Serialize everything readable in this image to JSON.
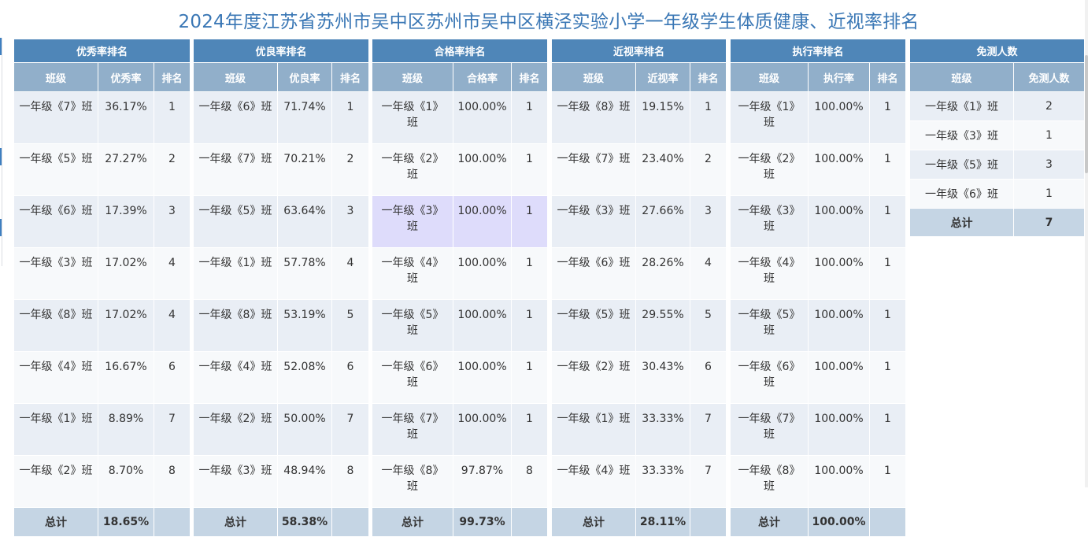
{
  "title": "2024年度江苏省苏州市吴中区苏州市吴中区横泾实验小学一年级学生体质健康、近视率排名",
  "tables": [
    {
      "title": "优秀率排名",
      "headers": [
        "班级",
        "优秀率",
        "排名"
      ],
      "rows": [
        {
          "cls": "一年级《7》班",
          "rate": "36.17%",
          "rank": "1"
        },
        {
          "cls": "一年级《5》班",
          "rate": "27.27%",
          "rank": "2"
        },
        {
          "cls": "一年级《6》班",
          "rate": "17.39%",
          "rank": "3"
        },
        {
          "cls": "一年级《3》班",
          "rate": "17.02%",
          "rank": "4"
        },
        {
          "cls": "一年级《8》班",
          "rate": "17.02%",
          "rank": "4"
        },
        {
          "cls": "一年级《4》班",
          "rate": "16.67%",
          "rank": "6"
        },
        {
          "cls": "一年级《1》班",
          "rate": "8.89%",
          "rank": "7"
        },
        {
          "cls": "一年级《2》班",
          "rate": "8.70%",
          "rank": "8"
        }
      ],
      "total_label": "总计",
      "total_value": "18.65%"
    },
    {
      "title": "优良率排名",
      "headers": [
        "班级",
        "优良率",
        "排名"
      ],
      "rows": [
        {
          "cls": "一年级《6》班",
          "rate": "71.74%",
          "rank": "1"
        },
        {
          "cls": "一年级《7》班",
          "rate": "70.21%",
          "rank": "2"
        },
        {
          "cls": "一年级《5》班",
          "rate": "63.64%",
          "rank": "3"
        },
        {
          "cls": "一年级《1》班",
          "rate": "57.78%",
          "rank": "4"
        },
        {
          "cls": "一年级《8》班",
          "rate": "53.19%",
          "rank": "5"
        },
        {
          "cls": "一年级《4》班",
          "rate": "52.08%",
          "rank": "6"
        },
        {
          "cls": "一年级《2》班",
          "rate": "50.00%",
          "rank": "7"
        },
        {
          "cls": "一年级《3》班",
          "rate": "48.94%",
          "rank": "8"
        }
      ],
      "total_label": "总计",
      "total_value": "58.38%"
    },
    {
      "title": "合格率排名",
      "headers": [
        "班级",
        "合格率",
        "排名"
      ],
      "rows": [
        {
          "cls": "一年级《1》班",
          "rate": "100.00%",
          "rank": "1"
        },
        {
          "cls": "一年级《2》班",
          "rate": "100.00%",
          "rank": "1"
        },
        {
          "cls": "一年级《3》班",
          "rate": "100.00%",
          "rank": "1"
        },
        {
          "cls": "一年级《4》班",
          "rate": "100.00%",
          "rank": "1"
        },
        {
          "cls": "一年级《5》班",
          "rate": "100.00%",
          "rank": "1"
        },
        {
          "cls": "一年级《6》班",
          "rate": "100.00%",
          "rank": "1"
        },
        {
          "cls": "一年级《7》班",
          "rate": "100.00%",
          "rank": "1"
        },
        {
          "cls": "一年级《8》班",
          "rate": "97.87%",
          "rank": "8"
        }
      ],
      "total_label": "总计",
      "total_value": "99.73%"
    },
    {
      "title": "近视率排名",
      "headers": [
        "班级",
        "近视率",
        "排名"
      ],
      "rows": [
        {
          "cls": "一年级《8》班",
          "rate": "19.15%",
          "rank": "1"
        },
        {
          "cls": "一年级《7》班",
          "rate": "23.40%",
          "rank": "2"
        },
        {
          "cls": "一年级《3》班",
          "rate": "27.66%",
          "rank": "3"
        },
        {
          "cls": "一年级《6》班",
          "rate": "28.26%",
          "rank": "4"
        },
        {
          "cls": "一年级《5》班",
          "rate": "29.55%",
          "rank": "5"
        },
        {
          "cls": "一年级《2》班",
          "rate": "30.43%",
          "rank": "6"
        },
        {
          "cls": "一年级《1》班",
          "rate": "33.33%",
          "rank": "7"
        },
        {
          "cls": "一年级《4》班",
          "rate": "33.33%",
          "rank": "7"
        }
      ],
      "total_label": "总计",
      "total_value": "28.11%"
    },
    {
      "title": "执行率排名",
      "headers": [
        "班级",
        "执行率",
        "排名"
      ],
      "rows": [
        {
          "cls": "一年级《1》班",
          "rate": "100.00%",
          "rank": "1"
        },
        {
          "cls": "一年级《2》班",
          "rate": "100.00%",
          "rank": "1"
        },
        {
          "cls": "一年级《3》班",
          "rate": "100.00%",
          "rank": "1"
        },
        {
          "cls": "一年级《4》班",
          "rate": "100.00%",
          "rank": "1"
        },
        {
          "cls": "一年级《5》班",
          "rate": "100.00%",
          "rank": "1"
        },
        {
          "cls": "一年级《6》班",
          "rate": "100.00%",
          "rank": "1"
        },
        {
          "cls": "一年级《7》班",
          "rate": "100.00%",
          "rank": "1"
        },
        {
          "cls": "一年级《8》班",
          "rate": "100.00%",
          "rank": "1"
        }
      ],
      "total_label": "总计",
      "total_value": "100.00%"
    },
    {
      "title": "免测人数",
      "headers": [
        "班级",
        "免测人数"
      ],
      "rows": [
        {
          "cls": "一年级《1》班",
          "count": "2"
        },
        {
          "cls": "一年级《3》班",
          "count": "1"
        },
        {
          "cls": "一年级《5》班",
          "count": "3"
        },
        {
          "cls": "一年级《6》班",
          "count": "1"
        }
      ],
      "total_label": "总计",
      "total_value": "7"
    }
  ],
  "colors": {
    "title": "#3a77b5",
    "header_dark": "#4f86b8",
    "header_light": "#91afca",
    "row_odd": "#e9eef5",
    "row_even": "#f7f9fb",
    "row_highlight": "#dedcfb",
    "total_row": "#c5d5e4"
  }
}
